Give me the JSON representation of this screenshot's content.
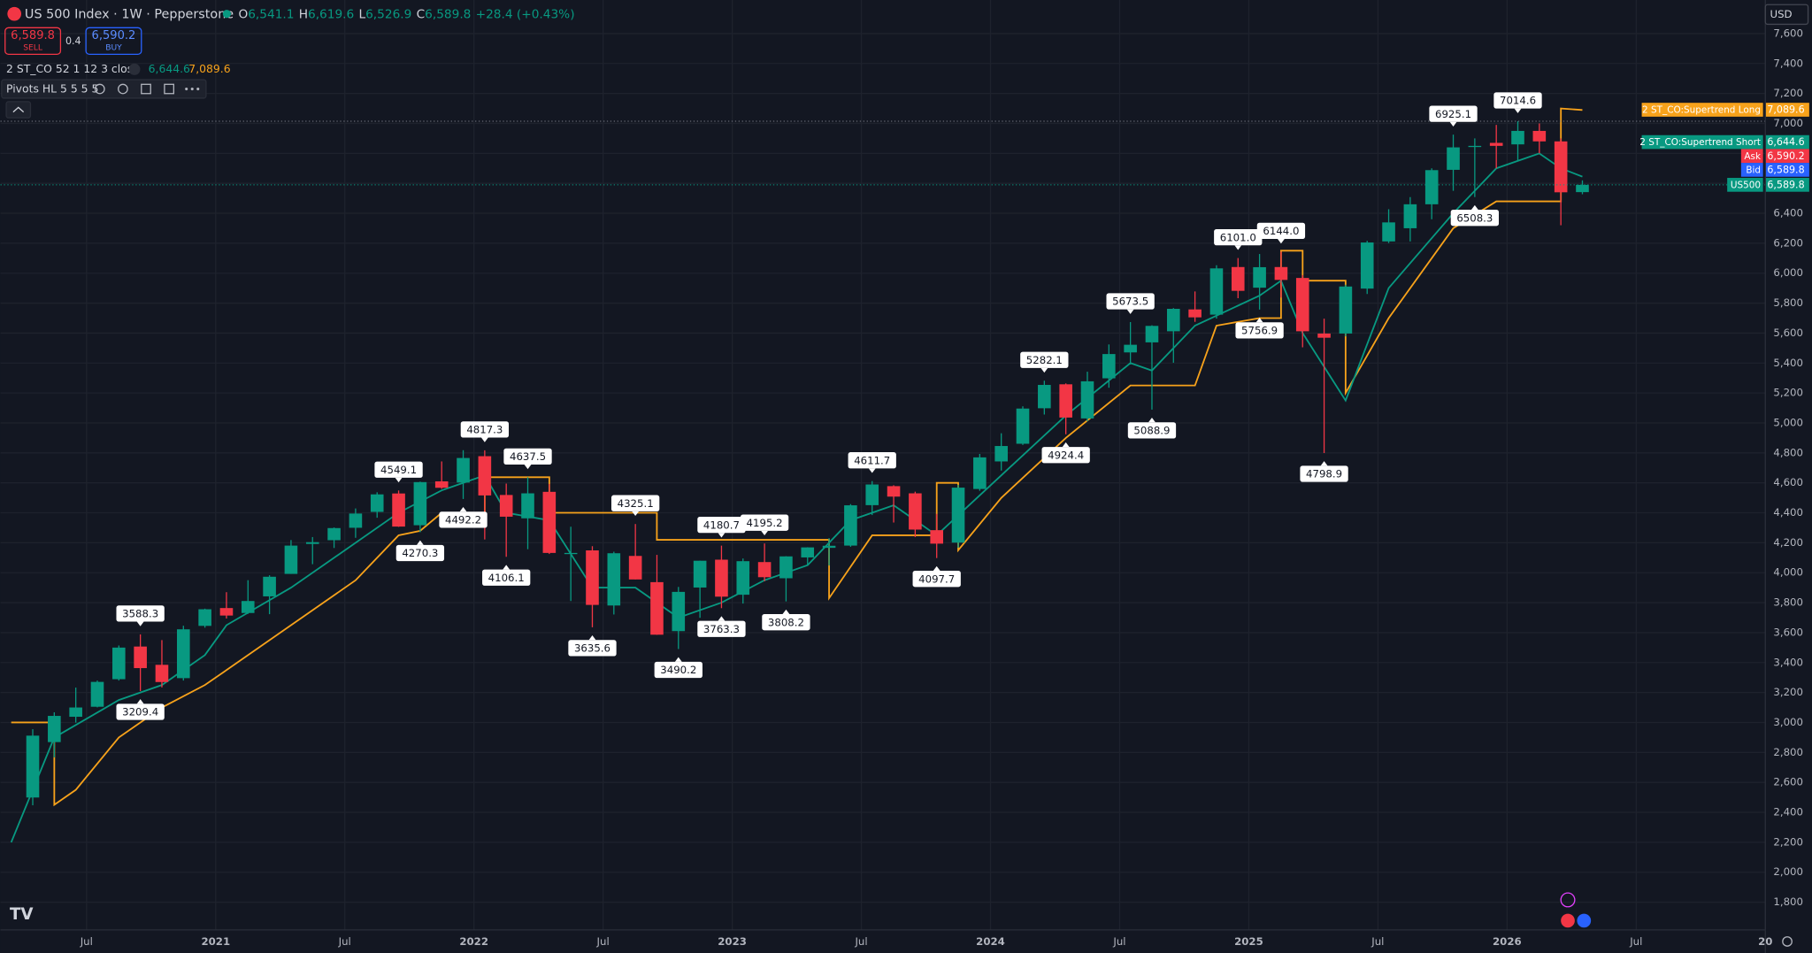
{
  "header": {
    "symbol": "US 500 Index · 1W · Pepperstone",
    "quote": [
      {
        "label": "O",
        "value": "6,541.1"
      },
      {
        "label": "H",
        "value": "6,619.6"
      },
      {
        "label": "L",
        "value": "6,526.9"
      },
      {
        "label": "C",
        "value": "6,589.8"
      }
    ],
    "change": "+28.4 (+0.43%)",
    "sell": {
      "price": "6,589.8",
      "label": "SELL"
    },
    "spread": "0.4",
    "buy": {
      "price": "6,590.2",
      "label": "BUY"
    },
    "indicator": {
      "name": "2 ST_CO 52 1 12 3 close",
      "short": "6,644.6",
      "long": "7,089.6"
    },
    "pivots_indicator": "Pivots HL 5 5 5 5",
    "currency": "USD"
  },
  "chart_data": {
    "type": "candlestick",
    "up_color": "#089981",
    "down_color": "#f23645",
    "xlim": [
      "2020-03",
      "2027-01"
    ],
    "ylim": [
      1615,
      7824
    ],
    "xticks": [
      {
        "value": "2020-07",
        "label": "Jul"
      },
      {
        "value": "2021-01",
        "label": "2021"
      },
      {
        "value": "2021-07",
        "label": "Jul"
      },
      {
        "value": "2022-01",
        "label": "2022"
      },
      {
        "value": "2022-07",
        "label": "Jul"
      },
      {
        "value": "2023-01",
        "label": "2023"
      },
      {
        "value": "2023-07",
        "label": "Jul"
      },
      {
        "value": "2024-01",
        "label": "2024"
      },
      {
        "value": "2024-07",
        "label": "Jul"
      },
      {
        "value": "2025-01",
        "label": "2025"
      },
      {
        "value": "2025-07",
        "label": "Jul"
      },
      {
        "value": "2026-01",
        "label": "2026"
      },
      {
        "value": "2026-07",
        "label": "Jul"
      },
      {
        "value": "2027-01",
        "label": "20"
      }
    ],
    "yticks": [
      {
        "value": 1800,
        "label": "1,800"
      },
      {
        "value": 2000,
        "label": "2,000"
      },
      {
        "value": 2200,
        "label": "2,200"
      },
      {
        "value": 2400,
        "label": "2,400"
      },
      {
        "value": 2600,
        "label": "2,600"
      },
      {
        "value": 2800,
        "label": "2,800"
      },
      {
        "value": 3000,
        "label": "3,000"
      },
      {
        "value": 3200,
        "label": "3,200"
      },
      {
        "value": 3400,
        "label": "3,400"
      },
      {
        "value": 3600,
        "label": "3,600"
      },
      {
        "value": 3800,
        "label": "3,800"
      },
      {
        "value": 4000,
        "label": "4,000"
      },
      {
        "value": 4200,
        "label": "4,200"
      },
      {
        "value": 4400,
        "label": "4,400"
      },
      {
        "value": 4600,
        "label": "4,600"
      },
      {
        "value": 4800,
        "label": "4,800"
      },
      {
        "value": 5000,
        "label": "5,000"
      },
      {
        "value": 5200,
        "label": "5,200"
      },
      {
        "value": 5400,
        "label": "5,400"
      },
      {
        "value": 5600,
        "label": "5,600"
      },
      {
        "value": 5800,
        "label": "5,800"
      },
      {
        "value": 6000,
        "label": "6,000"
      },
      {
        "value": 6200,
        "label": "6,200"
      },
      {
        "value": 6400,
        "label": "6,400"
      },
      {
        "value": 6600,
        "label": "6,600"
      },
      {
        "value": 6800,
        "label": "6,800"
      },
      {
        "value": 7000,
        "label": "7,000"
      },
      {
        "value": 7200,
        "label": "7,200"
      },
      {
        "value": 7400,
        "label": "7,400"
      },
      {
        "value": 7600,
        "label": "7,600"
      }
    ],
    "grid": true,
    "candles": {
      "x": [
        "2020-04",
        "2020-05",
        "2020-06",
        "2020-07",
        "2020-08",
        "2020-09",
        "2020-10",
        "2020-11",
        "2020-12",
        "2021-01",
        "2021-02",
        "2021-03",
        "2021-04",
        "2021-05",
        "2021-06",
        "2021-07",
        "2021-08",
        "2021-09",
        "2021-10",
        "2021-11",
        "2021-12",
        "2022-01",
        "2022-02",
        "2022-03",
        "2022-04",
        "2022-05",
        "2022-06",
        "2022-07",
        "2022-08",
        "2022-09",
        "2022-10",
        "2022-11",
        "2022-12",
        "2023-01",
        "2023-02",
        "2023-03",
        "2023-04",
        "2023-05",
        "2023-06",
        "2023-07",
        "2023-08",
        "2023-09",
        "2023-10",
        "2023-11",
        "2023-12",
        "2024-01",
        "2024-02",
        "2024-03",
        "2024-04",
        "2024-05",
        "2024-06",
        "2024-07",
        "2024-08",
        "2024-09",
        "2024-10",
        "2024-11",
        "2024-12",
        "2025-01",
        "2025-02",
        "2025-03",
        "2025-04",
        "2025-05",
        "2025-06",
        "2025-07",
        "2025-08",
        "2025-09",
        "2025-10",
        "2025-11",
        "2025-12",
        "2026-01",
        "2026-02",
        "2026-03",
        "2026-04"
      ],
      "open": [
        2499,
        2869,
        3038,
        3105,
        3289,
        3507,
        3385,
        3296,
        3645,
        3764,
        3731,
        3842,
        3992,
        4192,
        4217,
        4300,
        4406,
        4529,
        4317,
        4610,
        4602,
        4778,
        4519,
        4363,
        4540,
        4130,
        4149,
        3781,
        4112,
        3937,
        3610,
        3901,
        4087,
        3853,
        4071,
        3963,
        4102,
        4166,
        4181,
        4451,
        4578,
        4530,
        4284,
        4201,
        4559,
        4743,
        4861,
        5098,
        5258,
        5030,
        5298,
        5471,
        5538,
        5612,
        5758,
        5723,
        6041,
        5903,
        6041,
        5968,
        5597,
        5597,
        5897,
        6212,
        6300,
        6460,
        6690,
        6850,
        6870,
        6860,
        6950,
        6880,
        6541.1
      ],
      "high": [
        2955,
        3068,
        3233,
        3280,
        3514,
        3588.3,
        3550,
        3646,
        3760,
        3870,
        3950,
        3983,
        4218,
        4238,
        4302,
        4429,
        4537,
        4549.1,
        4608,
        4743,
        4818,
        4817.3,
        4595,
        4637.5,
        4593,
        4307,
        4177,
        4140,
        4325.1,
        4119,
        3905,
        4080,
        4180.7,
        4095,
        4195.2,
        4110,
        4170,
        4231,
        4458,
        4611.7,
        4584,
        4541,
        4393,
        4587,
        4793,
        4931,
        5111,
        5282.1,
        5264,
        5342,
        5524,
        5673.5,
        5652,
        5767,
        5878,
        6053,
        6101,
        6128,
        6144,
        5987,
        5696,
        5923,
        6216,
        6427,
        6508,
        6700,
        6925.1,
        6900,
        6990,
        7014.6,
        7000,
        6900,
        6619.6
      ],
      "low": [
        2447,
        2767,
        2999,
        3101,
        3280,
        3209.4,
        3234,
        3280,
        3633,
        3694,
        3725,
        3723,
        3992,
        4057,
        4165,
        4233,
        4367,
        4306,
        4270.3,
        4560,
        4492.2,
        4222,
        4106.1,
        4157,
        4125,
        3811,
        3635.6,
        3721,
        3955,
        3585,
        3490.2,
        3699,
        3763.3,
        3794,
        3943,
        3808.2,
        4049,
        4048,
        4173,
        4385,
        4335,
        4238,
        4097.7,
        4167,
        4547,
        4682,
        4853,
        5056,
        4924.4,
        5011,
        5235,
        5390,
        5088.9,
        5402,
        5675,
        5697,
        5833,
        5756.9,
        5837,
        5505,
        4798.9,
        5578,
        5861,
        6201,
        6212,
        6360,
        6550,
        6508.3,
        6700,
        6750,
        6800,
        6320,
        6526.9
      ],
      "close": [
        2912,
        3044,
        3100,
        3271,
        3500,
        3363,
        3270,
        3622,
        3756,
        3714,
        3811,
        3973,
        4181,
        4204,
        4298,
        4395,
        4523,
        4308,
        4605,
        4567,
        4766,
        4516,
        4374,
        4530,
        4132,
        4132,
        3785,
        4130,
        3955,
        3586,
        3872,
        4080,
        3840,
        4077,
        3970,
        4109,
        4169,
        4180,
        4450,
        4589,
        4508,
        4288,
        4194,
        4568,
        4770,
        4846,
        5096,
        5254,
        5036,
        5278,
        5460,
        5522,
        5648,
        5762,
        5705,
        6032,
        5882,
        6040,
        5955,
        5612,
        5569,
        5911,
        6205,
        6339,
        6460,
        6688,
        6840,
        6850,
        6850,
        6950,
        6880,
        6540,
        6589.8
      ]
    },
    "series": [
      {
        "name": "2 ST_CO:Supertrend Long",
        "color": "#f7a21b",
        "tag": "7,089.6",
        "x": [
          "2020-03",
          "2020-05",
          "2020-05",
          "2020-06",
          "2020-08",
          "2020-10",
          "2020-12",
          "2021-01",
          "2021-04",
          "2021-07",
          "2021-09",
          "2021-10",
          "2021-11",
          "2022-01",
          "2022-01",
          "2022-04",
          "2022-04",
          "2022-09",
          "2022-09",
          "2023-05",
          "2023-05",
          "2023-07",
          "2023-10",
          "2023-10",
          "2023-11",
          "2023-11",
          "2024-01",
          "2024-04",
          "2024-07",
          "2024-10",
          "2024-11",
          "2025-01",
          "2025-02",
          "2025-02",
          "2025-03",
          "2025-03",
          "2025-05",
          "2025-05",
          "2025-07",
          "2025-10",
          "2025-12",
          "2026-03",
          "2026-03",
          "2026-04"
        ],
        "values": [
          3000,
          3000,
          2450,
          2550,
          2900,
          3100,
          3250,
          3350,
          3650,
          3950,
          4250,
          4280,
          4400,
          4400,
          4637.5,
          4637.5,
          4400,
          4400,
          4220,
          4220,
          3830,
          4250,
          4250,
          4600,
          4600,
          4150,
          4500,
          4900,
          5250,
          5250,
          5650,
          5700,
          5700,
          6150,
          6150,
          5950,
          5950,
          5200,
          5700,
          6300,
          6480,
          6480,
          7100,
          7089.6
        ]
      },
      {
        "name": "2 ST_CO:Supertrend Short",
        "color": "#089981",
        "tag": "6,644.6",
        "x": [
          "2020-03",
          "2020-05",
          "2020-08",
          "2020-10",
          "2020-12",
          "2021-01",
          "2021-04",
          "2021-07",
          "2021-09",
          "2021-11",
          "2022-01",
          "2022-02",
          "2022-04",
          "2022-06",
          "2022-08",
          "2022-10",
          "2022-12",
          "2023-02",
          "2023-04",
          "2023-06",
          "2023-08",
          "2023-10",
          "2024-01",
          "2024-04",
          "2024-07",
          "2024-08",
          "2024-10",
          "2025-01",
          "2025-02",
          "2025-03",
          "2025-05",
          "2025-07",
          "2025-10",
          "2025-12",
          "2026-02",
          "2026-03",
          "2026-04"
        ],
        "values": [
          2200,
          2900,
          3150,
          3250,
          3450,
          3650,
          3900,
          4200,
          4400,
          4550,
          4650,
          4400,
          4350,
          3900,
          3900,
          3700,
          3800,
          3950,
          4050,
          4350,
          4450,
          4250,
          4650,
          5050,
          5400,
          5350,
          5650,
          5850,
          5950,
          5600,
          5150,
          5900,
          6400,
          6700,
          6800,
          6700,
          6644.6
        ]
      }
    ],
    "pivot_highs": [
      {
        "x": "2020-09",
        "value": 3588.3
      },
      {
        "x": "2021-09",
        "value": 4549.1
      },
      {
        "x": "2022-01",
        "value": 4817.3
      },
      {
        "x": "2022-03",
        "value": 4637.5
      },
      {
        "x": "2022-08",
        "value": 4325.1
      },
      {
        "x": "2022-12",
        "value": 4180.7
      },
      {
        "x": "2023-02",
        "value": 4195.2
      },
      {
        "x": "2023-07",
        "value": 4611.7
      },
      {
        "x": "2024-03",
        "value": 5282.1
      },
      {
        "x": "2024-07",
        "value": 5673.5
      },
      {
        "x": "2024-12",
        "value": 6101,
        "label": "6101.0"
      },
      {
        "x": "2025-02",
        "value": 6144,
        "label": "6144.0"
      },
      {
        "x": "2025-10",
        "value": 6925.1
      },
      {
        "x": "2026-01",
        "value": 7014.6
      }
    ],
    "pivot_lows": [
      {
        "x": "2020-09",
        "value": 3209.4
      },
      {
        "x": "2021-10",
        "value": 4270.3
      },
      {
        "x": "2021-12",
        "value": 4492.2
      },
      {
        "x": "2022-02",
        "value": 4106.1
      },
      {
        "x": "2022-06",
        "value": 3635.6
      },
      {
        "x": "2022-10",
        "value": 3490.2
      },
      {
        "x": "2022-12",
        "value": 3763.3
      },
      {
        "x": "2023-03",
        "value": 3808.2
      },
      {
        "x": "2023-10",
        "value": 4097.7
      },
      {
        "x": "2024-04",
        "value": 4924.4
      },
      {
        "x": "2024-08",
        "value": 5088.9
      },
      {
        "x": "2025-01",
        "value": 5756.9
      },
      {
        "x": "2025-04",
        "value": 4798.9
      },
      {
        "x": "2025-11",
        "value": 6508.3
      }
    ],
    "price_tags": [
      {
        "name": "Ask",
        "value": "6,590.2",
        "color": "#f23645"
      },
      {
        "name": "Bid",
        "value": "6,589.8",
        "color": "#2962ff"
      },
      {
        "name": "US500",
        "value": "6,589.8",
        "color": "#089981"
      }
    ]
  }
}
